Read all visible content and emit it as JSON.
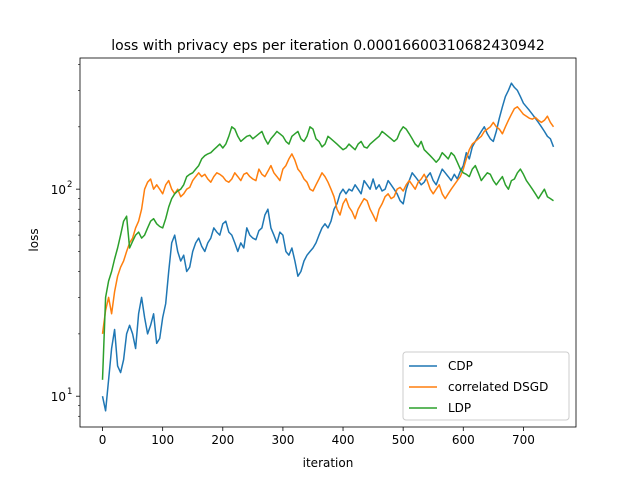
{
  "chart_data": {
    "type": "line",
    "title": "loss with privacy eps per iteration 0.00016600310682430942",
    "xlabel": "iteration",
    "ylabel": "loss",
    "xlim": [
      -37.5,
      787.5
    ],
    "ylim": [
      7.1,
      430
    ],
    "yscale": "log",
    "xticks": [
      0,
      100,
      200,
      300,
      400,
      500,
      600,
      700
    ],
    "yticks": [
      10,
      100
    ],
    "ytick_labels": [
      {
        "base": "10",
        "exp": "1"
      },
      {
        "base": "10",
        "exp": "2"
      }
    ],
    "grid": false,
    "legend_position": "lower-right",
    "series": [
      {
        "name": "CDP",
        "color": "#1f77b4",
        "x": [
          0,
          5,
          10,
          15,
          20,
          25,
          30,
          35,
          40,
          45,
          50,
          55,
          60,
          65,
          70,
          75,
          80,
          85,
          90,
          95,
          100,
          105,
          110,
          115,
          120,
          125,
          130,
          135,
          140,
          145,
          150,
          155,
          160,
          165,
          170,
          175,
          180,
          185,
          190,
          195,
          200,
          205,
          210,
          215,
          220,
          225,
          230,
          235,
          240,
          245,
          250,
          255,
          260,
          265,
          270,
          275,
          280,
          285,
          290,
          295,
          300,
          305,
          310,
          315,
          320,
          325,
          330,
          335,
          340,
          345,
          350,
          355,
          360,
          365,
          370,
          375,
          380,
          385,
          390,
          395,
          400,
          405,
          410,
          415,
          420,
          425,
          430,
          435,
          440,
          445,
          450,
          455,
          460,
          465,
          470,
          475,
          480,
          485,
          490,
          495,
          500,
          505,
          510,
          515,
          520,
          525,
          530,
          535,
          540,
          545,
          550,
          555,
          560,
          565,
          570,
          575,
          580,
          585,
          590,
          595,
          600,
          605,
          610,
          615,
          620,
          625,
          630,
          635,
          640,
          645,
          650,
          655,
          660,
          665,
          670,
          675,
          680,
          685,
          690,
          695,
          700,
          705,
          710,
          715,
          720,
          725,
          730,
          735,
          740,
          745,
          750
        ],
        "y": [
          10,
          8.5,
          12,
          17,
          21,
          14,
          13,
          15,
          20,
          22,
          20,
          17,
          25,
          30,
          24,
          20,
          22,
          25,
          18,
          19,
          24,
          28,
          40,
          55,
          60,
          50,
          45,
          48,
          40,
          42,
          50,
          55,
          58,
          53,
          50,
          55,
          58,
          65,
          62,
          60,
          68,
          70,
          62,
          60,
          55,
          50,
          55,
          52,
          65,
          60,
          58,
          57,
          63,
          65,
          75,
          80,
          65,
          60,
          55,
          62,
          60,
          50,
          48,
          52,
          45,
          38,
          40,
          45,
          48,
          50,
          52,
          55,
          60,
          65,
          68,
          65,
          70,
          80,
          85,
          95,
          100,
          95,
          100,
          98,
          105,
          100,
          95,
          110,
          105,
          100,
          112,
          100,
          105,
          98,
          100,
          110,
          105,
          100,
          95,
          88,
          85,
          100,
          110,
          120,
          115,
          110,
          105,
          108,
          115,
          120,
          110,
          105,
          115,
          125,
          120,
          115,
          110,
          118,
          112,
          122,
          130,
          150,
          140,
          160,
          170,
          180,
          190,
          200,
          185,
          175,
          170,
          190,
          220,
          250,
          280,
          300,
          325,
          310,
          300,
          280,
          260,
          250,
          240,
          230,
          220,
          210,
          200,
          190,
          180,
          175,
          160
        ]
      },
      {
        "name": "correlated DSGD",
        "color": "#ff7f0e",
        "x": [
          0,
          5,
          10,
          15,
          20,
          25,
          30,
          35,
          40,
          45,
          50,
          55,
          60,
          65,
          70,
          75,
          80,
          85,
          90,
          95,
          100,
          105,
          110,
          115,
          120,
          125,
          130,
          135,
          140,
          145,
          150,
          155,
          160,
          165,
          170,
          175,
          180,
          185,
          190,
          195,
          200,
          205,
          210,
          215,
          220,
          225,
          230,
          235,
          240,
          245,
          250,
          255,
          260,
          265,
          270,
          275,
          280,
          285,
          290,
          295,
          300,
          305,
          310,
          315,
          320,
          325,
          330,
          335,
          340,
          345,
          350,
          355,
          360,
          365,
          370,
          375,
          380,
          385,
          390,
          395,
          400,
          405,
          410,
          415,
          420,
          425,
          430,
          435,
          440,
          445,
          450,
          455,
          460,
          465,
          470,
          475,
          480,
          485,
          490,
          495,
          500,
          505,
          510,
          515,
          520,
          525,
          530,
          535,
          540,
          545,
          550,
          555,
          560,
          565,
          570,
          575,
          580,
          585,
          590,
          595,
          600,
          605,
          610,
          615,
          620,
          625,
          630,
          635,
          640,
          645,
          650,
          655,
          660,
          665,
          670,
          675,
          680,
          685,
          690,
          695,
          700,
          705,
          710,
          715,
          720,
          725,
          730,
          735,
          740,
          745,
          750
        ],
        "y": [
          20,
          26,
          30,
          25,
          32,
          38,
          42,
          45,
          50,
          55,
          58,
          65,
          70,
          80,
          100,
          108,
          112,
          100,
          105,
          100,
          95,
          105,
          110,
          100,
          95,
          100,
          92,
          95,
          100,
          102,
          110,
          115,
          120,
          115,
          118,
          112,
          108,
          115,
          120,
          118,
          115,
          110,
          108,
          112,
          120,
          115,
          110,
          118,
          120,
          115,
          112,
          110,
          125,
          118,
          115,
          122,
          130,
          120,
          115,
          110,
          125,
          130,
          140,
          148,
          138,
          125,
          120,
          112,
          108,
          100,
          98,
          105,
          112,
          120,
          115,
          108,
          100,
          92,
          80,
          75,
          85,
          90,
          82,
          78,
          72,
          80,
          85,
          90,
          88,
          80,
          75,
          70,
          80,
          85,
          92,
          95,
          90,
          92,
          100,
          102,
          98,
          105,
          110,
          105,
          100,
          108,
          112,
          118,
          110,
          100,
          95,
          100,
          105,
          95,
          90,
          95,
          100,
          105,
          110,
          115,
          125,
          140,
          155,
          165,
          170,
          175,
          180,
          190,
          195,
          200,
          210,
          200,
          195,
          185,
          200,
          215,
          230,
          245,
          250,
          240,
          230,
          225,
          220,
          218,
          222,
          215,
          210,
          215,
          225,
          210,
          200
        ]
      },
      {
        "name": "LDP",
        "color": "#2ca02c",
        "x": [
          0,
          5,
          10,
          15,
          20,
          25,
          30,
          35,
          40,
          45,
          50,
          55,
          60,
          65,
          70,
          75,
          80,
          85,
          90,
          95,
          100,
          105,
          110,
          115,
          120,
          125,
          130,
          135,
          140,
          145,
          150,
          155,
          160,
          165,
          170,
          175,
          180,
          185,
          190,
          195,
          200,
          205,
          210,
          215,
          220,
          225,
          230,
          235,
          240,
          245,
          250,
          255,
          260,
          265,
          270,
          275,
          280,
          285,
          290,
          295,
          300,
          305,
          310,
          315,
          320,
          325,
          330,
          335,
          340,
          345,
          350,
          355,
          360,
          365,
          370,
          375,
          380,
          385,
          390,
          395,
          400,
          405,
          410,
          415,
          420,
          425,
          430,
          435,
          440,
          445,
          450,
          455,
          460,
          465,
          470,
          475,
          480,
          485,
          490,
          495,
          500,
          505,
          510,
          515,
          520,
          525,
          530,
          535,
          540,
          545,
          550,
          555,
          560,
          565,
          570,
          575,
          580,
          585,
          590,
          595,
          600,
          605,
          610,
          615,
          620,
          625,
          630,
          635,
          640,
          645,
          650,
          655,
          660,
          665,
          670,
          675,
          680,
          685,
          690,
          695,
          700,
          705,
          710,
          715,
          720,
          725,
          730,
          735,
          740,
          745,
          750
        ],
        "y": [
          12,
          30,
          36,
          40,
          46,
          52,
          60,
          70,
          74,
          52,
          56,
          60,
          62,
          58,
          60,
          65,
          70,
          72,
          68,
          66,
          65,
          72,
          82,
          90,
          95,
          98,
          100,
          105,
          115,
          118,
          120,
          125,
          130,
          140,
          145,
          148,
          150,
          155,
          160,
          165,
          158,
          165,
          180,
          200,
          195,
          180,
          170,
          175,
          180,
          182,
          175,
          180,
          185,
          190,
          175,
          165,
          175,
          182,
          190,
          185,
          180,
          170,
          165,
          180,
          185,
          190,
          175,
          170,
          180,
          200,
          195,
          175,
          170,
          160,
          165,
          180,
          175,
          170,
          165,
          160,
          155,
          158,
          165,
          160,
          155,
          165,
          170,
          160,
          158,
          165,
          170,
          175,
          180,
          190,
          185,
          180,
          175,
          170,
          175,
          190,
          200,
          195,
          185,
          175,
          165,
          160,
          170,
          155,
          150,
          145,
          140,
          135,
          140,
          150,
          145,
          140,
          150,
          145,
          135,
          125,
          120,
          118,
          115,
          125,
          130,
          120,
          110,
          115,
          120,
          118,
          110,
          105,
          110,
          115,
          105,
          100,
          110,
          112,
          120,
          125,
          118,
          110,
          105,
          100,
          95,
          90,
          95,
          100,
          92,
          90,
          88
        ]
      }
    ]
  }
}
